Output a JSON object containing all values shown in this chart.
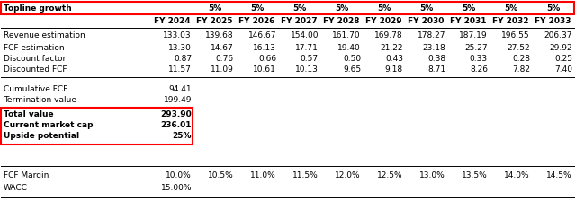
{
  "topline_growth_label": "Topline growth",
  "topline_growth_values": [
    "5%",
    "5%",
    "5%",
    "5%",
    "5%",
    "5%",
    "5%",
    "5%",
    "5%"
  ],
  "years": [
    "FY 2024",
    "FY 2025",
    "FY 2026",
    "FY 2027",
    "FY 2028",
    "FY 2029",
    "FY 2030",
    "FY 2031",
    "FY 2032",
    "FY 2033"
  ],
  "rows": [
    {
      "label": "Revenue estimation",
      "values": [
        "133.03",
        "139.68",
        "146.67",
        "154.00",
        "161.70",
        "169.78",
        "178.27",
        "187.19",
        "196.55",
        "206.37"
      ]
    },
    {
      "label": "FCF estimation",
      "values": [
        "13.30",
        "14.67",
        "16.13",
        "17.71",
        "19.40",
        "21.22",
        "23.18",
        "25.27",
        "27.52",
        "29.92"
      ]
    },
    {
      "label": "Discount factor",
      "values": [
        "0.87",
        "0.76",
        "0.66",
        "0.57",
        "0.50",
        "0.43",
        "0.38",
        "0.33",
        "0.28",
        "0.25"
      ]
    },
    {
      "label": "Discounted FCF",
      "values": [
        "11.57",
        "11.09",
        "10.61",
        "10.13",
        "9.65",
        "9.18",
        "8.71",
        "8.26",
        "7.82",
        "7.40"
      ]
    }
  ],
  "cumulative_fcf_label": "Cumulative FCF",
  "cumulative_fcf_value": "94.41",
  "termination_value_label": "Termination value",
  "termination_value_value": "199.49",
  "total_value_label": "Total value",
  "total_value_value": "293.90",
  "current_market_cap_label": "Current market cap",
  "current_market_cap_value": "236.01",
  "upside_potential_label": "Upside potential",
  "upside_potential_value": "25%",
  "fcf_margin_label": "FCF Margin",
  "fcf_margin_values": [
    "10.0%",
    "10.5%",
    "11.0%",
    "11.5%",
    "12.0%",
    "12.5%",
    "13.0%",
    "13.5%",
    "14.0%",
    "14.5%"
  ],
  "wacc_label": "WACC",
  "wacc_value": "15.00%",
  "red_border_color": "#FF0000",
  "font_size": 6.5
}
